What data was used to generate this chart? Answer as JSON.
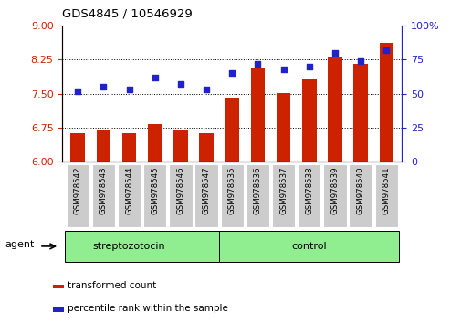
{
  "title": "GDS4845 / 10546929",
  "categories": [
    "GSM978542",
    "GSM978543",
    "GSM978544",
    "GSM978545",
    "GSM978546",
    "GSM978547",
    "GSM978535",
    "GSM978536",
    "GSM978537",
    "GSM978538",
    "GSM978539",
    "GSM978540",
    "GSM978541"
  ],
  "bar_values": [
    6.62,
    6.68,
    6.62,
    6.82,
    6.68,
    6.62,
    7.42,
    8.05,
    7.52,
    7.82,
    8.3,
    8.15,
    8.62
  ],
  "scatter_values": [
    52,
    55,
    53,
    62,
    57,
    53,
    65,
    72,
    68,
    70,
    80,
    74,
    82
  ],
  "bar_color": "#cc2200",
  "scatter_color": "#2222cc",
  "ylim_left": [
    6,
    9
  ],
  "ylim_right": [
    0,
    100
  ],
  "yticks_left": [
    6,
    6.75,
    7.5,
    8.25,
    9
  ],
  "yticks_right": [
    0,
    25,
    50,
    75,
    100
  ],
  "hlines": [
    6.75,
    7.5,
    8.25
  ],
  "group1_label": "streptozotocin",
  "group2_label": "control",
  "group1_count": 6,
  "group2_count": 7,
  "legend_bar": "transformed count",
  "legend_scatter": "percentile rank within the sample",
  "agent_label": "agent",
  "tick_label_bg": "#cccccc",
  "green_bg": "#90ee90"
}
